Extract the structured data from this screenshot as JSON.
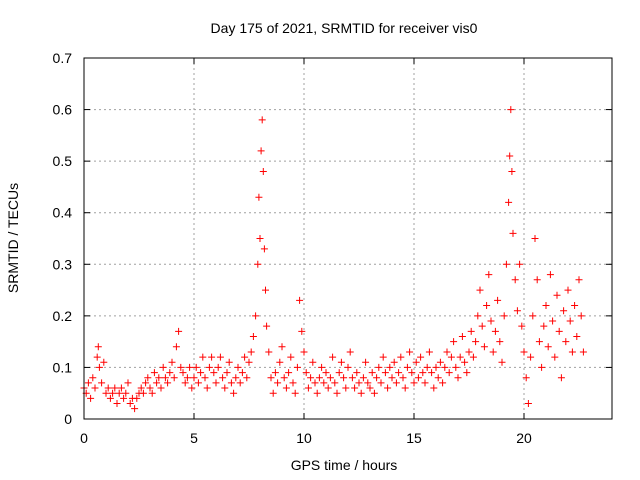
{
  "chart_data": {
    "type": "scatter",
    "title": "Day 175 of 2021, SRMTID for receiver vis0",
    "xlabel": "GPS time / hours",
    "ylabel": "SRMTID / TECUs",
    "xlim": [
      0,
      24
    ],
    "ylim": [
      0,
      0.7
    ],
    "xticks": [
      0,
      5,
      10,
      15,
      20
    ],
    "xtick_labels": [
      "0",
      "5",
      "10",
      "15",
      "20"
    ],
    "yticks": [
      0,
      0.1,
      0.2,
      0.3,
      0.4,
      0.5,
      0.6,
      0.7
    ],
    "ytick_labels": [
      "0",
      "0.1",
      "0.2",
      "0.3",
      "0.4",
      "0.5",
      "0.6",
      "0.7"
    ],
    "grid": true,
    "marker": "+",
    "series": [
      {
        "name": "vis0",
        "color": "#ff0000",
        "points": [
          [
            0.0,
            0.06
          ],
          [
            0.1,
            0.05
          ],
          [
            0.2,
            0.07
          ],
          [
            0.3,
            0.04
          ],
          [
            0.4,
            0.08
          ],
          [
            0.5,
            0.06
          ],
          [
            0.6,
            0.12
          ],
          [
            0.65,
            0.14
          ],
          [
            0.7,
            0.1
          ],
          [
            0.8,
            0.07
          ],
          [
            0.9,
            0.11
          ],
          [
            1.0,
            0.05
          ],
          [
            1.1,
            0.06
          ],
          [
            1.2,
            0.04
          ],
          [
            1.3,
            0.05
          ],
          [
            1.4,
            0.06
          ],
          [
            1.5,
            0.03
          ],
          [
            1.6,
            0.05
          ],
          [
            1.7,
            0.06
          ],
          [
            1.8,
            0.04
          ],
          [
            1.9,
            0.05
          ],
          [
            2.0,
            0.07
          ],
          [
            2.1,
            0.03
          ],
          [
            2.2,
            0.04
          ],
          [
            2.3,
            0.02
          ],
          [
            2.4,
            0.04
          ],
          [
            2.5,
            0.05
          ],
          [
            2.6,
            0.06
          ],
          [
            2.7,
            0.05
          ],
          [
            2.8,
            0.07
          ],
          [
            2.9,
            0.08
          ],
          [
            3.0,
            0.06
          ],
          [
            3.1,
            0.05
          ],
          [
            3.2,
            0.09
          ],
          [
            3.3,
            0.07
          ],
          [
            3.4,
            0.08
          ],
          [
            3.5,
            0.06
          ],
          [
            3.6,
            0.1
          ],
          [
            3.7,
            0.08
          ],
          [
            3.8,
            0.07
          ],
          [
            3.9,
            0.09
          ],
          [
            4.0,
            0.11
          ],
          [
            4.1,
            0.08
          ],
          [
            4.2,
            0.14
          ],
          [
            4.3,
            0.17
          ],
          [
            4.4,
            0.1
          ],
          [
            4.5,
            0.09
          ],
          [
            4.6,
            0.07
          ],
          [
            4.7,
            0.08
          ],
          [
            4.8,
            0.1
          ],
          [
            4.9,
            0.06
          ],
          [
            5.0,
            0.08
          ],
          [
            5.1,
            0.1
          ],
          [
            5.2,
            0.07
          ],
          [
            5.3,
            0.09
          ],
          [
            5.4,
            0.12
          ],
          [
            5.5,
            0.08
          ],
          [
            5.6,
            0.06
          ],
          [
            5.7,
            0.1
          ],
          [
            5.8,
            0.12
          ],
          [
            5.9,
            0.09
          ],
          [
            6.0,
            0.07
          ],
          [
            6.1,
            0.1
          ],
          [
            6.2,
            0.12
          ],
          [
            6.3,
            0.08
          ],
          [
            6.4,
            0.06
          ],
          [
            6.5,
            0.09
          ],
          [
            6.6,
            0.11
          ],
          [
            6.7,
            0.07
          ],
          [
            6.8,
            0.05
          ],
          [
            6.9,
            0.08
          ],
          [
            7.0,
            0.1
          ],
          [
            7.1,
            0.07
          ],
          [
            7.2,
            0.09
          ],
          [
            7.3,
            0.12
          ],
          [
            7.4,
            0.08
          ],
          [
            7.5,
            0.11
          ],
          [
            7.6,
            0.13
          ],
          [
            7.7,
            0.16
          ],
          [
            7.8,
            0.2
          ],
          [
            7.9,
            0.3
          ],
          [
            7.95,
            0.43
          ],
          [
            8.0,
            0.35
          ],
          [
            8.05,
            0.52
          ],
          [
            8.1,
            0.58
          ],
          [
            8.15,
            0.48
          ],
          [
            8.2,
            0.33
          ],
          [
            8.25,
            0.25
          ],
          [
            8.3,
            0.18
          ],
          [
            8.4,
            0.13
          ],
          [
            8.5,
            0.08
          ],
          [
            8.6,
            0.05
          ],
          [
            8.7,
            0.09
          ],
          [
            8.8,
            0.07
          ],
          [
            8.9,
            0.11
          ],
          [
            9.0,
            0.14
          ],
          [
            9.1,
            0.08
          ],
          [
            9.2,
            0.06
          ],
          [
            9.3,
            0.09
          ],
          [
            9.4,
            0.12
          ],
          [
            9.5,
            0.07
          ],
          [
            9.6,
            0.05
          ],
          [
            9.7,
            0.1
          ],
          [
            9.8,
            0.23
          ],
          [
            9.9,
            0.17
          ],
          [
            10.0,
            0.13
          ],
          [
            10.1,
            0.09
          ],
          [
            10.2,
            0.06
          ],
          [
            10.3,
            0.08
          ],
          [
            10.4,
            0.11
          ],
          [
            10.5,
            0.07
          ],
          [
            10.6,
            0.05
          ],
          [
            10.7,
            0.08
          ],
          [
            10.8,
            0.1
          ],
          [
            10.9,
            0.07
          ],
          [
            11.0,
            0.09
          ],
          [
            11.1,
            0.06
          ],
          [
            11.2,
            0.08
          ],
          [
            11.3,
            0.12
          ],
          [
            11.4,
            0.07
          ],
          [
            11.5,
            0.05
          ],
          [
            11.6,
            0.09
          ],
          [
            11.7,
            0.11
          ],
          [
            11.8,
            0.08
          ],
          [
            11.9,
            0.06
          ],
          [
            12.0,
            0.1
          ],
          [
            12.1,
            0.13
          ],
          [
            12.2,
            0.08
          ],
          [
            12.3,
            0.06
          ],
          [
            12.4,
            0.09
          ],
          [
            12.5,
            0.07
          ],
          [
            12.6,
            0.05
          ],
          [
            12.7,
            0.08
          ],
          [
            12.8,
            0.11
          ],
          [
            12.9,
            0.07
          ],
          [
            13.0,
            0.06
          ],
          [
            13.1,
            0.09
          ],
          [
            13.2,
            0.05
          ],
          [
            13.3,
            0.08
          ],
          [
            13.4,
            0.1
          ],
          [
            13.5,
            0.07
          ],
          [
            13.6,
            0.12
          ],
          [
            13.7,
            0.09
          ],
          [
            13.8,
            0.06
          ],
          [
            13.9,
            0.1
          ],
          [
            14.0,
            0.08
          ],
          [
            14.1,
            0.11
          ],
          [
            14.2,
            0.07
          ],
          [
            14.3,
            0.09
          ],
          [
            14.4,
            0.12
          ],
          [
            14.5,
            0.08
          ],
          [
            14.6,
            0.06
          ],
          [
            14.7,
            0.1
          ],
          [
            14.8,
            0.13
          ],
          [
            14.9,
            0.09
          ],
          [
            15.0,
            0.07
          ],
          [
            15.1,
            0.11
          ],
          [
            15.2,
            0.08
          ],
          [
            15.3,
            0.12
          ],
          [
            15.4,
            0.09
          ],
          [
            15.5,
            0.07
          ],
          [
            15.6,
            0.1
          ],
          [
            15.7,
            0.13
          ],
          [
            15.8,
            0.09
          ],
          [
            15.9,
            0.06
          ],
          [
            16.0,
            0.1
          ],
          [
            16.1,
            0.08
          ],
          [
            16.2,
            0.11
          ],
          [
            16.3,
            0.07
          ],
          [
            16.4,
            0.1
          ],
          [
            16.5,
            0.13
          ],
          [
            16.6,
            0.09
          ],
          [
            16.7,
            0.12
          ],
          [
            16.8,
            0.15
          ],
          [
            16.9,
            0.1
          ],
          [
            17.0,
            0.08
          ],
          [
            17.1,
            0.12
          ],
          [
            17.2,
            0.16
          ],
          [
            17.3,
            0.11
          ],
          [
            17.4,
            0.09
          ],
          [
            17.5,
            0.13
          ],
          [
            17.6,
            0.17
          ],
          [
            17.7,
            0.12
          ],
          [
            17.8,
            0.15
          ],
          [
            17.9,
            0.2
          ],
          [
            18.0,
            0.25
          ],
          [
            18.1,
            0.18
          ],
          [
            18.2,
            0.14
          ],
          [
            18.3,
            0.22
          ],
          [
            18.4,
            0.28
          ],
          [
            18.5,
            0.19
          ],
          [
            18.6,
            0.13
          ],
          [
            18.7,
            0.17
          ],
          [
            18.8,
            0.23
          ],
          [
            18.9,
            0.15
          ],
          [
            19.0,
            0.11
          ],
          [
            19.1,
            0.2
          ],
          [
            19.2,
            0.3
          ],
          [
            19.3,
            0.42
          ],
          [
            19.35,
            0.51
          ],
          [
            19.4,
            0.6
          ],
          [
            19.45,
            0.48
          ],
          [
            19.5,
            0.36
          ],
          [
            19.6,
            0.27
          ],
          [
            19.7,
            0.21
          ],
          [
            19.8,
            0.3
          ],
          [
            19.9,
            0.18
          ],
          [
            20.0,
            0.13
          ],
          [
            20.1,
            0.08
          ],
          [
            20.2,
            0.03
          ],
          [
            20.3,
            0.12
          ],
          [
            20.4,
            0.2
          ],
          [
            20.5,
            0.35
          ],
          [
            20.6,
            0.27
          ],
          [
            20.7,
            0.15
          ],
          [
            20.8,
            0.1
          ],
          [
            20.9,
            0.18
          ],
          [
            21.0,
            0.22
          ],
          [
            21.1,
            0.14
          ],
          [
            21.2,
            0.28
          ],
          [
            21.3,
            0.19
          ],
          [
            21.4,
            0.12
          ],
          [
            21.5,
            0.24
          ],
          [
            21.6,
            0.17
          ],
          [
            21.7,
            0.08
          ],
          [
            21.8,
            0.21
          ],
          [
            21.9,
            0.15
          ],
          [
            22.0,
            0.25
          ],
          [
            22.1,
            0.19
          ],
          [
            22.2,
            0.13
          ],
          [
            22.3,
            0.22
          ],
          [
            22.4,
            0.16
          ],
          [
            22.5,
            0.27
          ],
          [
            22.6,
            0.2
          ],
          [
            22.7,
            0.13
          ]
        ]
      }
    ]
  }
}
